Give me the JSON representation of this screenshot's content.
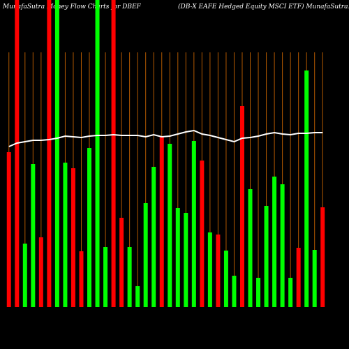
{
  "chart_data": {
    "type": "bar",
    "title": "MunafaSutra  Money Flow  Charts for DBEF",
    "subtitle": "(DB-X   EAFE Hedged Equity MSCI ETF) MunafaSutra.com",
    "categories": [
      null,
      null,
      null,
      null,
      null,
      null,
      null,
      null,
      null,
      null,
      null,
      null,
      null,
      null,
      null,
      null,
      null,
      null,
      null,
      null,
      null,
      null,
      null,
      null,
      null,
      null,
      null,
      null,
      null,
      null,
      null,
      null,
      null,
      null,
      null,
      null,
      null,
      null,
      null,
      null
    ],
    "values": [
      222,
      440,
      91,
      205,
      100,
      440,
      440,
      207,
      199,
      80,
      228,
      440,
      86,
      440,
      128,
      86,
      30,
      149,
      201,
      245,
      234,
      142,
      135,
      238,
      210,
      107,
      104,
      81,
      45,
      288,
      169,
      42,
      145,
      187,
      176,
      42,
      85,
      339,
      82,
      143
    ],
    "colors": [
      "#ff0000",
      "#ff0000",
      "#00ff00",
      "#00ff00",
      "#ff0000",
      "#ff0000",
      "#00ff00",
      "#00ff00",
      "#ff0000",
      "#ff0000",
      "#00ff00",
      "#00ff00",
      "#00ff00",
      "#ff0000",
      "#ff0000",
      "#00ff00",
      "#00ff00",
      "#00ff00",
      "#00ff00",
      "#ff0000",
      "#00ff00",
      "#00ff00",
      "#00ff00",
      "#00ff00",
      "#ff0000",
      "#00ff00",
      "#ff0000",
      "#00ff00",
      "#00ff00",
      "#ff0000",
      "#00ff00",
      "#00ff00",
      "#00ff00",
      "#00ff00",
      "#00ff00",
      "#00ff00",
      "#ff0000",
      "#00ff00",
      "#00ff00",
      "#ff0000"
    ],
    "line": {
      "color": "#ffffff",
      "values": [
        230,
        235,
        237,
        239,
        239,
        240,
        242,
        245,
        244,
        243,
        245,
        246,
        246,
        247,
        246,
        246,
        246,
        244,
        247,
        244,
        245,
        248,
        251,
        253,
        248,
        246,
        243,
        240,
        237,
        242,
        243,
        245,
        248,
        250,
        248,
        247,
        249,
        249,
        250,
        250
      ]
    },
    "guide_color": "#b35900",
    "ylim": [
      0,
      440
    ]
  }
}
